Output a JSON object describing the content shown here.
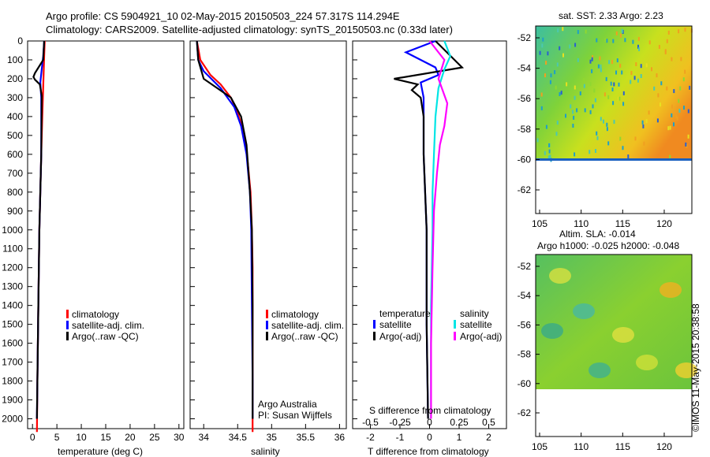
{
  "header": {
    "line1": "Argo profile: CS 5904921_10 02-May-2015 20150503_224 57.317S 114.294E",
    "line2": "Climatology: CARS2009. Satellite-adjusted climatology: synTS_20150503.nc (0.33d later)"
  },
  "credit": "©IMOS 11-May-2015 20:38:58",
  "colors": {
    "climatology": "#ff0000",
    "satellite": "#0000ff",
    "argo": "#000000",
    "sat_s": "#00e5e5",
    "argo_s": "#ff00ff"
  },
  "panels": {
    "temperature": {
      "xlabel": "temperature (deg C)",
      "xticks": [
        "0",
        "5",
        "10",
        "15",
        "20",
        "25",
        "30"
      ],
      "legend": [
        "climatology",
        "satellite-adj. clim.",
        "Argo(..raw -QC)"
      ]
    },
    "salinity": {
      "xlabel": "salinity",
      "xticks": [
        "34",
        "34.5",
        "35",
        "35.5",
        "36"
      ],
      "legend": [
        "climatology",
        "satellite-adj. clim.",
        "Argo(..raw -QC)"
      ],
      "note1": "Argo Australia",
      "note2": "PI: Susan Wijffels"
    },
    "difference": {
      "xlabel": "T difference from climatology",
      "s_label": "S difference from climatology",
      "xticks": [
        "-2",
        "-1",
        "0",
        "1",
        "2"
      ],
      "s_ticks": [
        "-0.5",
        "-0.25",
        "0",
        "0.25",
        "0.5"
      ],
      "legend_temp_title": "temperature",
      "legend_sal_title": "salinity",
      "legend_temp": [
        "satellite",
        "Argo(-adj)"
      ],
      "legend_sal": [
        "satellite",
        "Argo(-adj)"
      ]
    }
  },
  "yticks": [
    "0",
    "100",
    "200",
    "300",
    "400",
    "500",
    "600",
    "700",
    "800",
    "900",
    "1000",
    "1100",
    "1200",
    "1300",
    "1400",
    "1500",
    "1600",
    "1700",
    "1800",
    "1900",
    "2000"
  ],
  "maps": {
    "sst": {
      "title": "sat. SST: 2.33 Argo: 2.23"
    },
    "sla": {
      "title1": "Altim. SLA: -0.014",
      "title2": "Argo h1000: -0.025 h2000: -0.048"
    },
    "yticks": [
      "-52",
      "-54",
      "-56",
      "-58",
      "-60",
      "-62"
    ],
    "xticks": [
      "105",
      "110",
      "115",
      "120"
    ]
  },
  "chart_data": [
    {
      "type": "line",
      "title": "temperature",
      "xlabel": "temperature (deg C)",
      "ylabel": "",
      "xlim": [
        -1,
        31
      ],
      "ylim": [
        2070,
        0
      ],
      "series": [
        {
          "name": "climatology",
          "x": [
            2.5,
            2.4,
            2.3,
            2.2,
            2.0,
            1.8,
            1.6,
            1.4,
            1.2,
            1.0,
            0.9
          ],
          "y": [
            0,
            80,
            160,
            240,
            400,
            600,
            800,
            1000,
            1400,
            1800,
            2070
          ]
        },
        {
          "name": "satellite-adj. clim.",
          "x": [
            2.4,
            2.2,
            1.9,
            1.6,
            1.8,
            1.8,
            1.6,
            1.4,
            1.2,
            1.0,
            0.9
          ],
          "y": [
            0,
            80,
            150,
            220,
            300,
            600,
            800,
            1000,
            1400,
            1800,
            2000
          ]
        },
        {
          "name": "Argo(..raw -QC)",
          "x": [
            2.4,
            2.2,
            0.5,
            0.2,
            0.5,
            1.5,
            1.9,
            1.8,
            1.6,
            1.4,
            1.2,
            1.0,
            0.9
          ],
          "y": [
            0,
            100,
            170,
            190,
            205,
            230,
            290,
            600,
            800,
            1000,
            1400,
            1800,
            2000
          ]
        }
      ]
    },
    {
      "type": "line",
      "title": "salinity",
      "xlabel": "salinity",
      "ylabel": "",
      "xlim": [
        33.8,
        36.1
      ],
      "ylim": [
        2070,
        0
      ],
      "series": [
        {
          "name": "climatology",
          "x": [
            33.9,
            33.95,
            34.1,
            34.25,
            34.4,
            34.5,
            34.6,
            34.65,
            34.69,
            34.71,
            34.72,
            34.72,
            34.72
          ],
          "y": [
            0,
            100,
            180,
            230,
            300,
            380,
            500,
            650,
            800,
            1000,
            1200,
            1600,
            2070
          ]
        },
        {
          "name": "satellite-adj. clim.",
          "x": [
            33.9,
            33.92,
            34.0,
            34.25,
            34.45,
            34.55,
            34.63,
            34.68,
            34.7,
            34.71,
            34.72,
            34.72
          ],
          "y": [
            0,
            100,
            160,
            250,
            350,
            450,
            600,
            800,
            1000,
            1400,
            1800,
            2000
          ]
        },
        {
          "name": "Argo(..raw -QC)",
          "x": [
            33.9,
            33.92,
            34.0,
            34.2,
            34.4,
            34.55,
            34.63,
            34.68,
            34.71,
            34.72,
            34.72,
            34.72
          ],
          "y": [
            0,
            100,
            200,
            250,
            300,
            400,
            550,
            800,
            1000,
            1400,
            1800,
            2000
          ]
        }
      ]
    },
    {
      "type": "line",
      "title": "difference",
      "xlabel": "T difference from climatology",
      "ylabel": "",
      "xlim": [
        -2.6,
        2.6
      ],
      "ylim": [
        2070,
        0
      ],
      "series": [
        {
          "name": "temperature satellite",
          "x": [
            0.2,
            -0.8,
            -0.3,
            0.2,
            0.3,
            -0.3,
            -0.2,
            -0.2,
            -0.1,
            -0.1,
            -0.05
          ],
          "y": [
            0,
            60,
            100,
            140,
            180,
            220,
            300,
            600,
            1000,
            1500,
            2000
          ]
        },
        {
          "name": "temperature Argo(-adj)",
          "x": [
            0.2,
            1.1,
            -1.2,
            -0.4,
            -0.6,
            -0.3,
            -0.2,
            -0.2,
            -0.1,
            -0.1,
            -0.05
          ],
          "y": [
            0,
            140,
            200,
            230,
            260,
            300,
            400,
            600,
            1000,
            1500,
            2000
          ]
        },
        {
          "name": "salinity satellite",
          "x": [
            0.5,
            0.7,
            0.5,
            0.3,
            0.2,
            0.15,
            0.1,
            0.1,
            0.05,
            0.05,
            0.05
          ],
          "y": [
            0,
            80,
            150,
            250,
            400,
            600,
            800,
            1000,
            1400,
            1800,
            2000
          ]
        },
        {
          "name": "salinity Argo(-adj)",
          "x": [
            0.0,
            0.5,
            0.3,
            0.6,
            0.5,
            0.35,
            0.25,
            0.15,
            0.1,
            0.05,
            0.05
          ],
          "y": [
            0,
            100,
            200,
            330,
            450,
            550,
            700,
            900,
            1200,
            1600,
            2000
          ]
        }
      ]
    }
  ]
}
